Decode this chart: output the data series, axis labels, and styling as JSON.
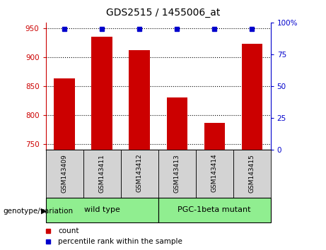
{
  "title": "GDS2515 / 1455006_at",
  "samples": [
    "GSM143409",
    "GSM143411",
    "GSM143412",
    "GSM143413",
    "GSM143414",
    "GSM143415"
  ],
  "counts": [
    863,
    935,
    912,
    831,
    787,
    923
  ],
  "ylim_left": [
    740,
    960
  ],
  "ylim_right": [
    0,
    100
  ],
  "yticks_left": [
    750,
    800,
    850,
    900,
    950
  ],
  "yticks_right": [
    0,
    25,
    50,
    75,
    100
  ],
  "ytick_labels_right": [
    "0",
    "25",
    "50",
    "75",
    "100%"
  ],
  "bar_color": "#cc0000",
  "dot_color": "#0000cc",
  "axis_left_color": "#cc0000",
  "axis_right_color": "#0000cc",
  "bar_width": 0.55,
  "legend_count_label": "count",
  "legend_percentile_label": "percentile rank within the sample",
  "wt_color": "#90ee90",
  "mutant_color": "#90ee90",
  "label_bg_color": "#d3d3d3"
}
